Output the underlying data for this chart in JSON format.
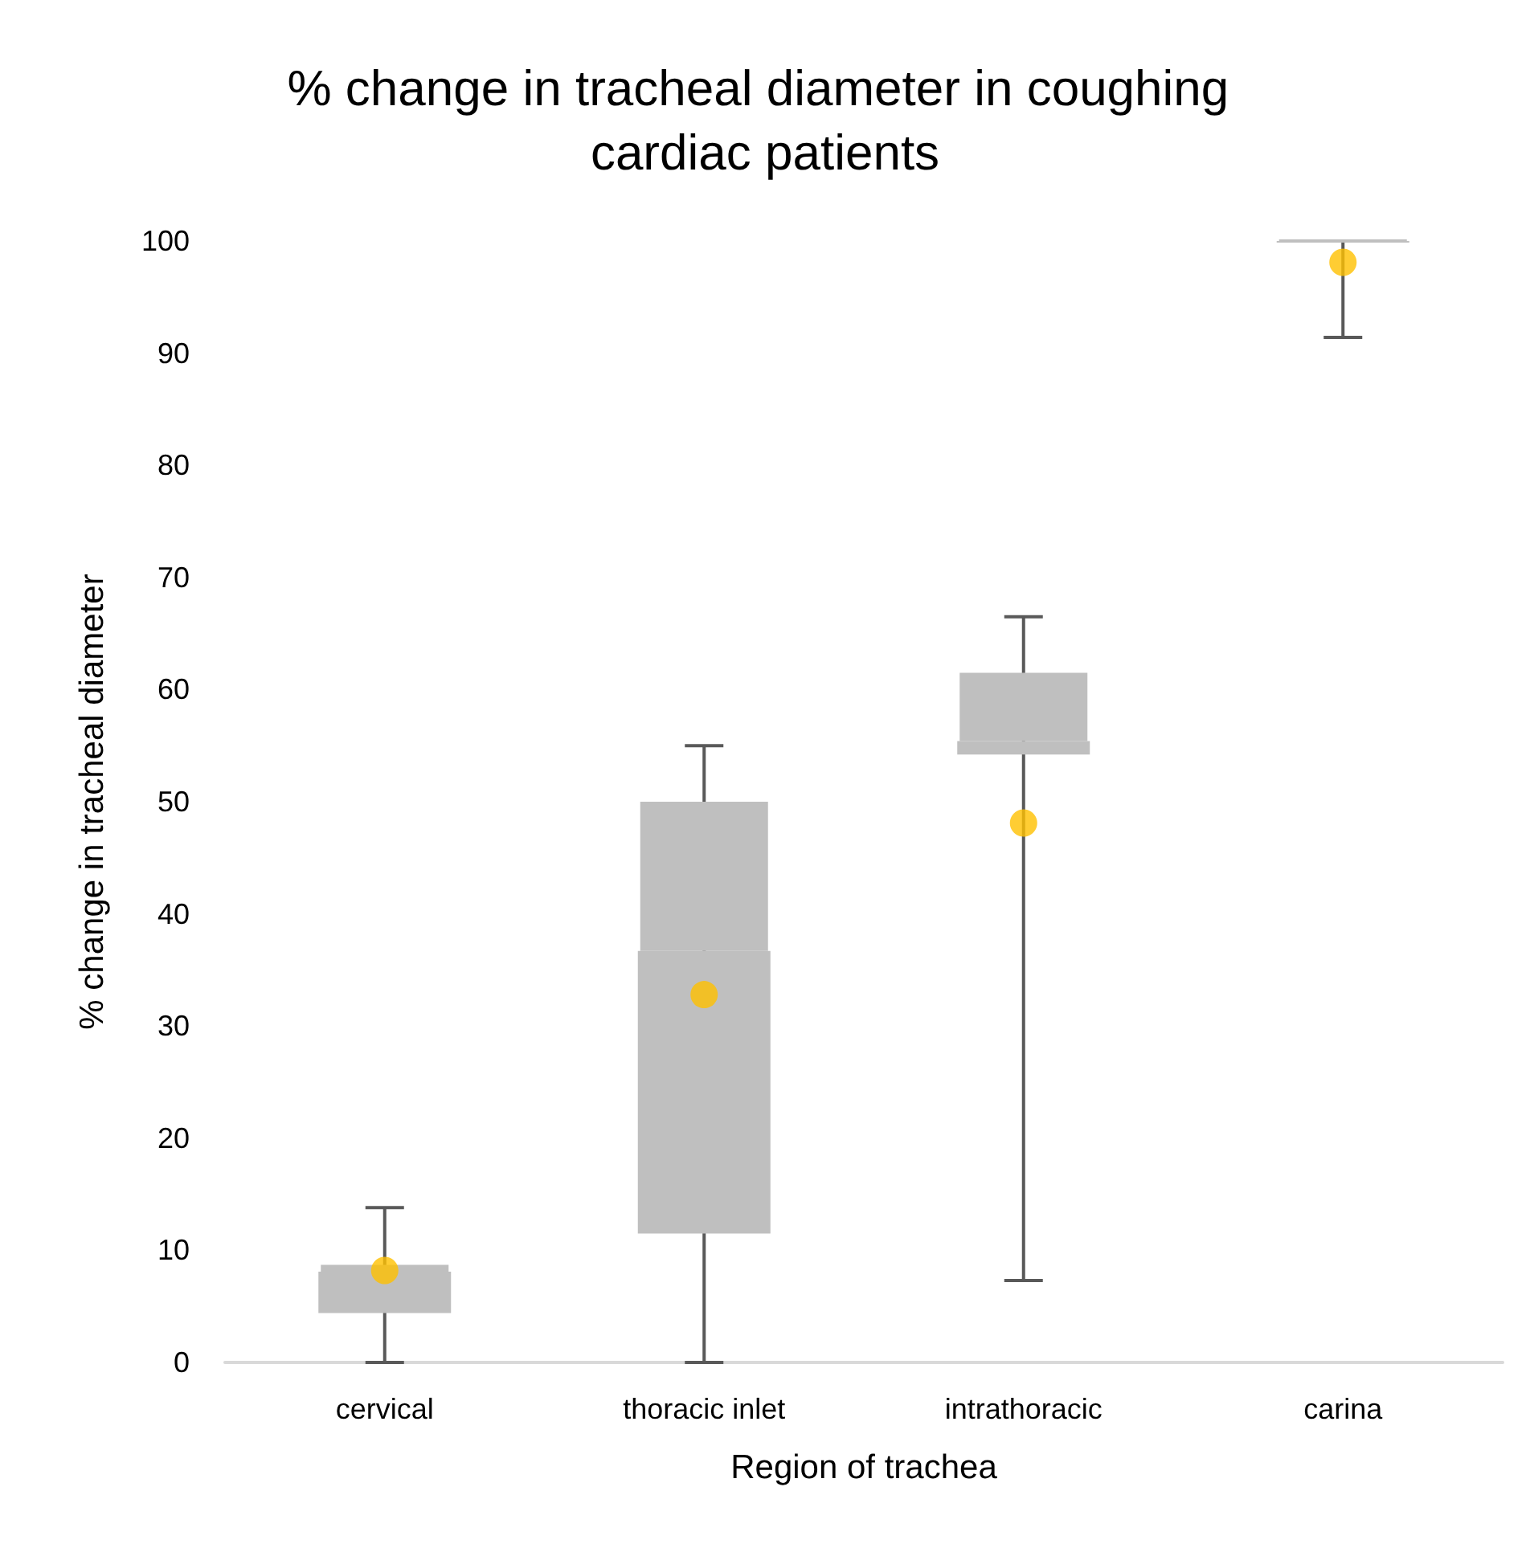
{
  "chart_data": {
    "type": "box",
    "title": "% change in tracheal diameter in coughing cardiac patients",
    "xlabel": "Region of trachea",
    "ylabel": "% change in tracheal diameter",
    "categories": [
      "cervical",
      "thoracic inlet",
      "intrathoracic",
      "carina"
    ],
    "series": [
      {
        "type": "box",
        "color": "#bfbfbf",
        "boxes": [
          {
            "low": 0,
            "q1": 4.4,
            "median": 8.1,
            "q3": 8.7,
            "high": 13.8
          },
          {
            "low": 0,
            "q1": 11.5,
            "median": 36.7,
            "q3": 50,
            "high": 55
          },
          {
            "low": 7.3,
            "q1": 54.2,
            "median": 55.4,
            "q3": 61.5,
            "high": 66.5
          },
          {
            "low": 91.4,
            "q1": 100,
            "median": 100,
            "q3": 100,
            "high": 100
          }
        ]
      },
      {
        "type": "scatter",
        "color": "#ffc000",
        "marker": "circle",
        "x": [
          "cervical",
          "thoracic inlet",
          "intrathoracic",
          "carina"
        ],
        "values": [
          8.2,
          32.8,
          48.1,
          98.1
        ]
      }
    ],
    "ylim": [
      0,
      100
    ],
    "yticks": [
      0,
      10,
      20,
      30,
      40,
      50,
      60,
      70,
      80,
      90,
      100
    ],
    "grid": false
  }
}
